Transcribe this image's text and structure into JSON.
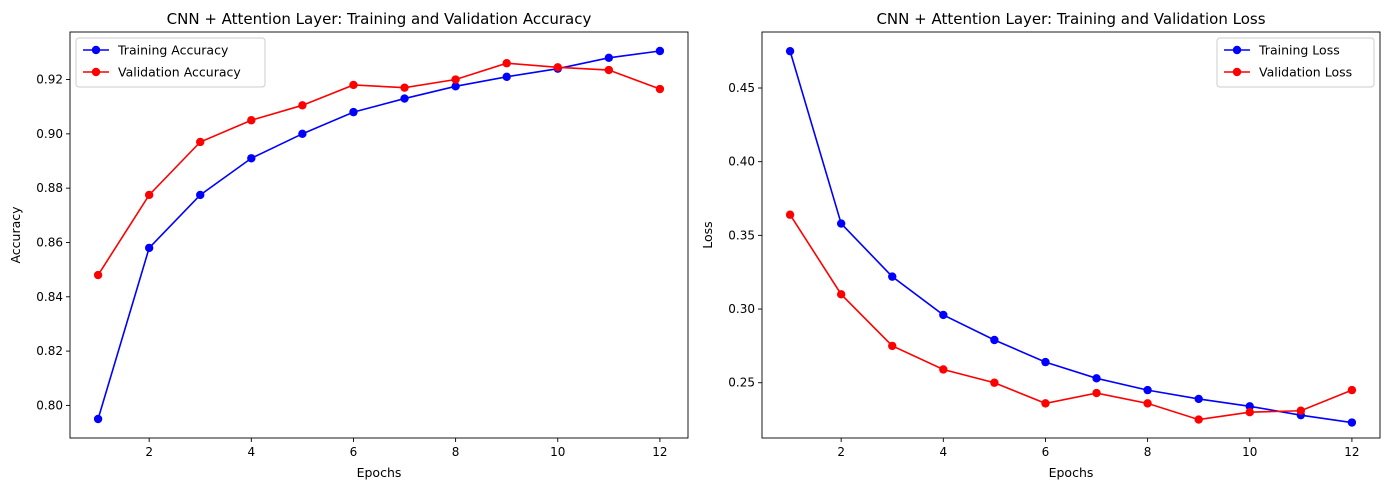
{
  "chart_data": [
    {
      "type": "line",
      "title": "CNN + Attention Layer: Training and Validation Accuracy",
      "xlabel": "Epochs",
      "ylabel": "Accuracy",
      "xlim": [
        0.45,
        12.55
      ],
      "ylim": [
        0.788,
        0.9375
      ],
      "xticks": [
        2,
        4,
        6,
        8,
        10,
        12
      ],
      "yticks": [
        0.8,
        0.82,
        0.84,
        0.86,
        0.88,
        0.9,
        0.92
      ],
      "ytick_labels": [
        "0.80",
        "0.82",
        "0.84",
        "0.86",
        "0.88",
        "0.90",
        "0.92"
      ],
      "grid": false,
      "legend_position": "top-left",
      "x": [
        1,
        2,
        3,
        4,
        5,
        6,
        7,
        8,
        9,
        10,
        11,
        12
      ],
      "series": [
        {
          "name": "Training Accuracy",
          "color": "#0000ff",
          "marker": "circle",
          "values": [
            0.795,
            0.858,
            0.8775,
            0.891,
            0.9,
            0.908,
            0.913,
            0.9175,
            0.921,
            0.924,
            0.928,
            0.9305
          ]
        },
        {
          "name": "Validation Accuracy",
          "color": "#ff0000",
          "marker": "circle",
          "values": [
            0.848,
            0.8775,
            0.897,
            0.905,
            0.9105,
            0.918,
            0.917,
            0.92,
            0.926,
            0.9245,
            0.9235,
            0.9165
          ]
        }
      ]
    },
    {
      "type": "line",
      "title": "CNN + Attention Layer: Training and Validation Loss",
      "xlabel": "Epochs",
      "ylabel": "Loss",
      "xlim": [
        0.45,
        12.55
      ],
      "ylim": [
        0.2125,
        0.488
      ],
      "xticks": [
        2,
        4,
        6,
        8,
        10,
        12
      ],
      "yticks": [
        0.25,
        0.3,
        0.35,
        0.4,
        0.45
      ],
      "ytick_labels": [
        "0.25",
        "0.30",
        "0.35",
        "0.40",
        "0.45"
      ],
      "grid": false,
      "legend_position": "top-right",
      "x": [
        1,
        2,
        3,
        4,
        5,
        6,
        7,
        8,
        9,
        10,
        11,
        12
      ],
      "series": [
        {
          "name": "Training Loss",
          "color": "#0000ff",
          "marker": "circle",
          "values": [
            0.475,
            0.358,
            0.322,
            0.296,
            0.279,
            0.264,
            0.253,
            0.245,
            0.239,
            0.234,
            0.228,
            0.223
          ]
        },
        {
          "name": "Validation Loss",
          "color": "#ff0000",
          "marker": "circle",
          "values": [
            0.364,
            0.31,
            0.275,
            0.259,
            0.25,
            0.236,
            0.243,
            0.236,
            0.225,
            0.23,
            0.231,
            0.245
          ]
        }
      ]
    }
  ]
}
